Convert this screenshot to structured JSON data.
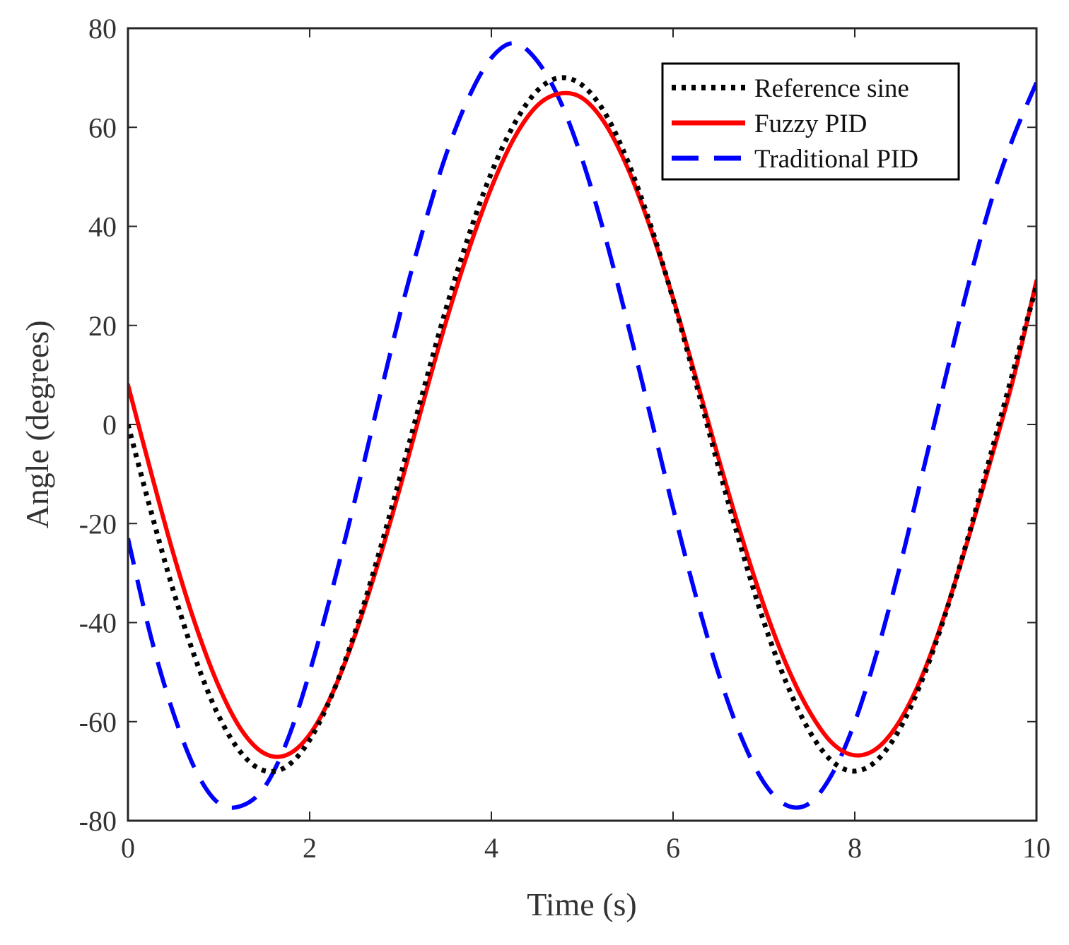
{
  "chart_data": {
    "type": "line",
    "title": "",
    "xlabel": "Time (s)",
    "ylabel": "Angle (degrees)",
    "xlim": [
      0,
      10
    ],
    "ylim": [
      -80,
      80
    ],
    "xticks": [
      0,
      2,
      4,
      6,
      8,
      10
    ],
    "yticks": [
      80,
      60,
      40,
      20,
      0,
      -20,
      -40,
      -60,
      -80
    ],
    "grid": false,
    "legend_position": "top-right",
    "x": [
      0,
      0.25,
      0.5,
      0.75,
      1,
      1.25,
      1.5,
      1.75,
      2,
      2.25,
      2.5,
      2.75,
      3,
      3.25,
      3.5,
      3.75,
      4,
      4.25,
      4.5,
      4.75,
      5,
      5.25,
      5.5,
      5.75,
      6,
      6.25,
      6.5,
      6.75,
      7,
      7.25,
      7.5,
      7.75,
      8,
      8.25,
      8.5,
      8.75,
      9,
      9.25,
      9.5,
      9.75,
      10
    ],
    "series": [
      {
        "name": "Reference sine",
        "color": "#000000",
        "style": "dotted",
        "values": [
          0,
          -17.3,
          -33.6,
          -47.7,
          -58.9,
          -66.4,
          -69.9,
          -69.0,
          -63.7,
          -54.4,
          -41.9,
          -26.8,
          -10.3,
          6.8,
          23.3,
          38.1,
          50.8,
          60.6,
          67.3,
          70.0,
          68.5,
          62.9,
          53.2,
          40.4,
          25.3,
          8.5,
          -8.6,
          -24.9,
          -39.9,
          -52.3,
          -61.9,
          -68.0,
          -70.0,
          -67.7,
          -61.3,
          -51.2,
          -38.1,
          -22.6,
          -5.8,
          11.2,
          28.0
        ]
      },
      {
        "name": "Fuzzy PID",
        "color": "#ff0000",
        "style": "solid",
        "values": [
          8.0,
          -9.4,
          -26.1,
          -40.8,
          -52.9,
          -61.7,
          -66.4,
          -66.7,
          -62.6,
          -54.3,
          -42.5,
          -28.2,
          -12.4,
          4.5,
          20.7,
          35.2,
          47.8,
          57.8,
          64.3,
          66.8,
          65.9,
          60.8,
          51.8,
          39.7,
          25.5,
          9.5,
          -6.8,
          -22.4,
          -36.6,
          -48.6,
          -57.9,
          -64.3,
          -66.8,
          -65.3,
          -59.7,
          -50.4,
          -37.8,
          -23.0,
          -7.0,
          9.6,
          29.0
        ]
      },
      {
        "name": "Traditional PID",
        "color": "#0000ff",
        "style": "dashed",
        "values": [
          -23.0,
          -42.7,
          -58.3,
          -70.0,
          -76.5,
          -77.0,
          -73.3,
          -64.0,
          -50.0,
          -33.2,
          -15.1,
          4.0,
          22.7,
          39.5,
          54.4,
          66.0,
          74.0,
          77.0,
          73.5,
          65.6,
          53.5,
          38.1,
          20.4,
          1.8,
          -16.9,
          -34.6,
          -50.3,
          -63.1,
          -72.3,
          -76.9,
          -76.5,
          -70.6,
          -60.1,
          -45.6,
          -28.4,
          -9.5,
          9.6,
          28.2,
          45.0,
          58.2,
          69.0
        ]
      }
    ]
  }
}
